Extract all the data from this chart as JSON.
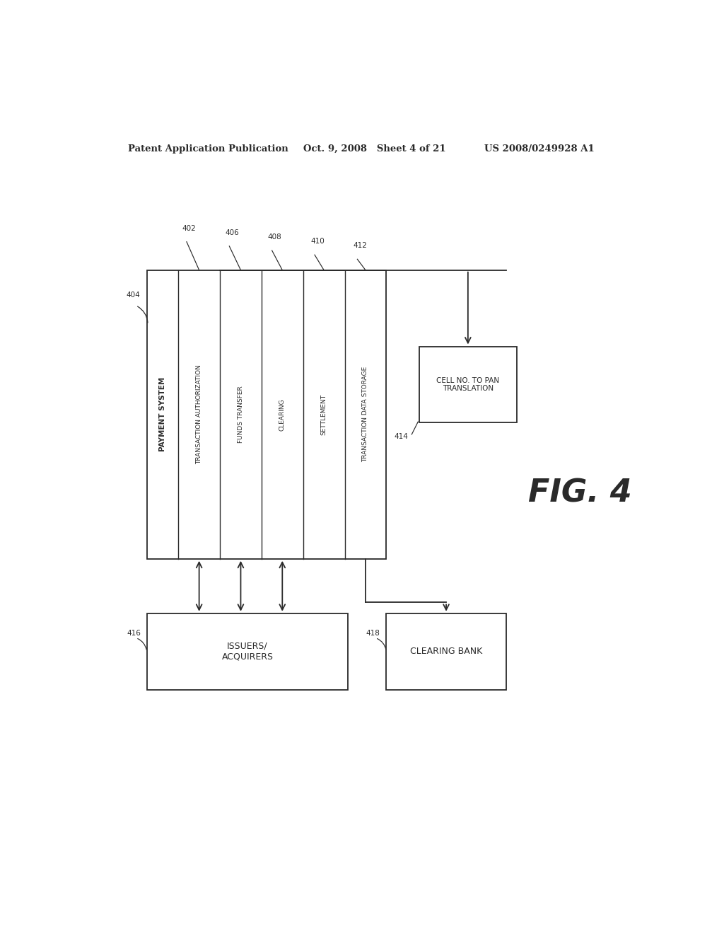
{
  "header_left": "Patent Application Publication",
  "header_mid": "Oct. 9, 2008   Sheet 4 of 21",
  "header_right": "US 2008/0249928 A1",
  "fig_label": "FIG. 4",
  "payment_system_label": "PAYMENT SYSTEM",
  "modules": [
    {
      "label": "TRANSACTION AUTHORIZATION",
      "ref": "402"
    },
    {
      "label": "FUNDS TRANSFER",
      "ref": "406"
    },
    {
      "label": "CLEARING",
      "ref": "408"
    },
    {
      "label": "SETTLEMENT",
      "ref": "410"
    },
    {
      "label": "TRANSACTION DATA STORAGE",
      "ref": "412"
    }
  ],
  "outer_box_ref": "404",
  "cell_box_label": "CELL NO. TO PAN\nTRANSLATION",
  "cell_box_ref": "414",
  "issuers_label": "ISSUERS/\nACQUIRERS",
  "issuers_ref": "416",
  "clearing_bank_label": "CLEARING BANK",
  "clearing_bank_ref": "418",
  "bg_color": "#ffffff",
  "box_edge_color": "#2a2a2a",
  "text_color": "#2a2a2a",
  "arrow_color": "#2a2a2a"
}
